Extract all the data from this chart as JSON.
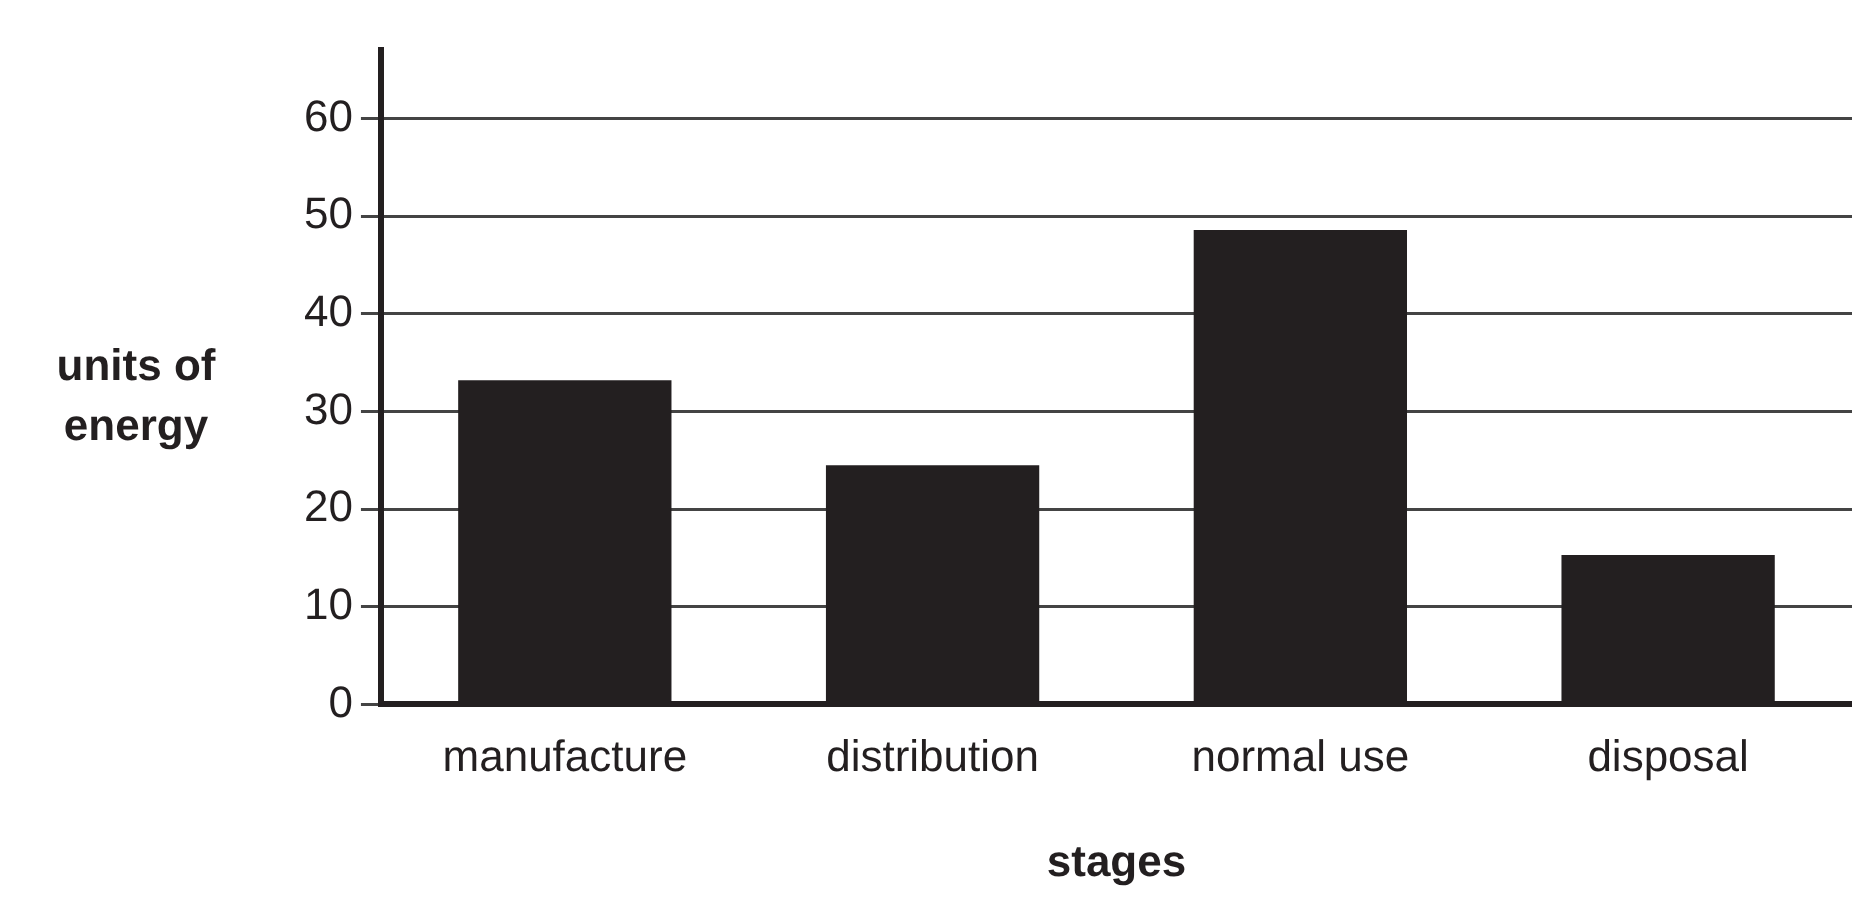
{
  "chart_data": {
    "type": "bar",
    "xlabel": "stages",
    "ylabel": "units of energy",
    "categories": [
      "manufacture",
      "distribution",
      "normal use",
      "disposal"
    ],
    "values": [
      33.2,
      24.5,
      48.6,
      15.3
    ],
    "color": "#231f20",
    "ylim": [
      0,
      67
    ],
    "yticks": [
      0,
      10,
      20,
      30,
      40,
      50,
      60
    ],
    "grid": "y",
    "legend": false
  }
}
